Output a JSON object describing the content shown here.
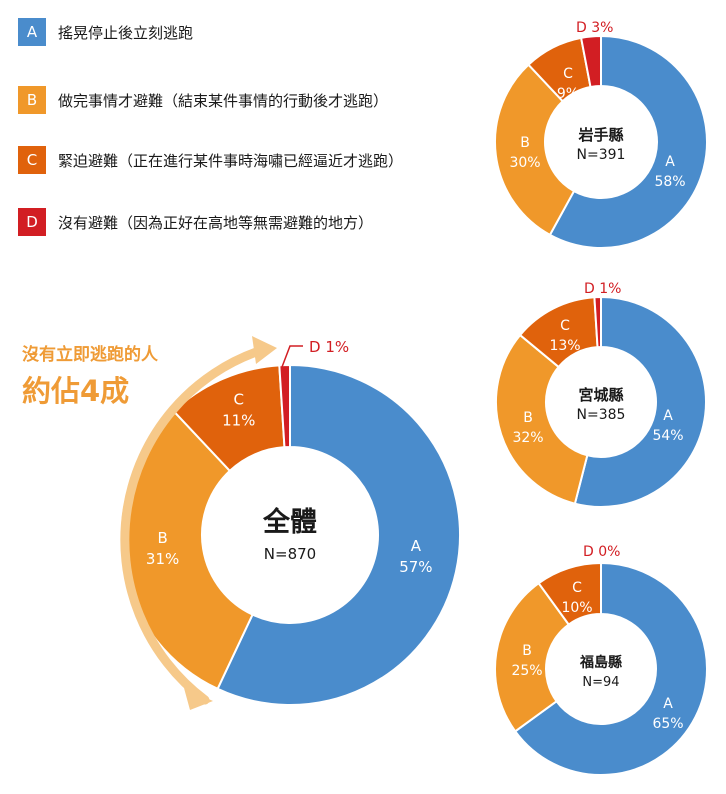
{
  "legend": [
    {
      "key": "A",
      "label": "搖晃停止後立刻逃跑",
      "color": "#4a8ccc"
    },
    {
      "key": "B",
      "label": "做完事情才避難（結束某件事情的行動後才逃跑）",
      "color": "#f0982a"
    },
    {
      "key": "C",
      "label": "緊迫避難（正在進行某件事時海嘯已經逼近才逃跑）",
      "color": "#e0620c"
    },
    {
      "key": "D",
      "label": "沒有避難（因為正好在高地等無需避難的地方）",
      "color": "#d21e23"
    }
  ],
  "callout": {
    "line1": "沒有立即逃跑的人",
    "line2": "約佔4成"
  },
  "colors": {
    "A": "#4a8ccc",
    "B": "#f0982a",
    "C": "#e0620c",
    "D": "#d21e23",
    "arrow": "#f6c98a"
  },
  "chart_data": [
    {
      "type": "pie",
      "title": "全體",
      "subtitle": "N=870",
      "categories": [
        "A",
        "B",
        "C",
        "D"
      ],
      "values": [
        57,
        31,
        11,
        1
      ],
      "value_labels": [
        "57%",
        "31%",
        "11%",
        "1%"
      ]
    },
    {
      "type": "pie",
      "title": "岩手縣",
      "subtitle": "N=391",
      "categories": [
        "A",
        "B",
        "C",
        "D"
      ],
      "values": [
        58,
        30,
        9,
        3
      ],
      "value_labels": [
        "58%",
        "30%",
        "9%",
        "3%"
      ]
    },
    {
      "type": "pie",
      "title": "宮城縣",
      "subtitle": "N=385",
      "categories": [
        "A",
        "B",
        "C",
        "D"
      ],
      "values": [
        54,
        32,
        13,
        1
      ],
      "value_labels": [
        "54%",
        "32%",
        "13%",
        "1%"
      ]
    },
    {
      "type": "pie",
      "title": "福島縣",
      "subtitle": "N=94",
      "categories": [
        "A",
        "B",
        "C",
        "D"
      ],
      "values": [
        65,
        25,
        10,
        0
      ],
      "value_labels": [
        "65%",
        "25%",
        "10%",
        "0%"
      ]
    }
  ]
}
